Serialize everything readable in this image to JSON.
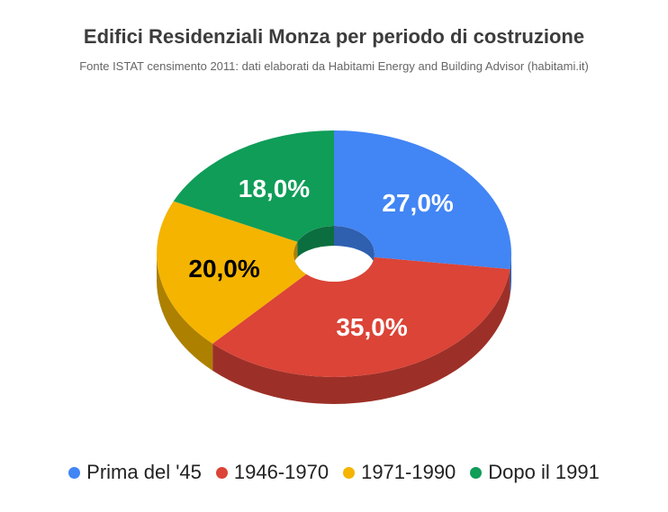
{
  "header": {
    "title": "Edifici Residenziali Monza per periodo di costruzione",
    "subtitle": "Fonte ISTAT censimento 2011: dati elaborati da Habitami Energy and Building Advisor (habitami.it)"
  },
  "chart_data": {
    "type": "pie",
    "style": "3d-donut",
    "title": "Edifici Residenziali Monza per periodo di costruzione",
    "subtitle": "Fonte ISTAT censimento 2011: dati elaborati da Habitami Energy and Building Advisor (habitami.it)",
    "legend_position": "bottom",
    "slices": [
      {
        "label": "Prima del '45",
        "value": 27.0,
        "display": "27,0%",
        "color": "#4285f4",
        "side_color": "#2f5faf",
        "text_color": "#ffffff"
      },
      {
        "label": "1946-1970",
        "value": 35.0,
        "display": "35,0%",
        "color": "#db4437",
        "side_color": "#9c3028",
        "text_color": "#ffffff"
      },
      {
        "label": "1971-1990",
        "value": 20.0,
        "display": "20,0%",
        "color": "#f4b400",
        "side_color": "#ad8000",
        "text_color": "#000000"
      },
      {
        "label": "Dopo il 1991",
        "value": 18.0,
        "display": "18,0%",
        "color": "#0f9d58",
        "side_color": "#0b6e3e",
        "text_color": "#ffffff"
      }
    ]
  }
}
